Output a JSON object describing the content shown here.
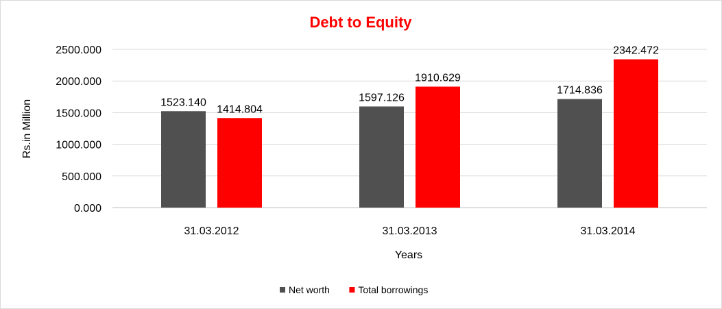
{
  "chart_data": {
    "type": "bar",
    "title": "Debt to Equity",
    "title_color": "#ff0000",
    "xlabel": "Years",
    "ylabel": "Rs.in Million",
    "categories": [
      "31.03.2012",
      "31.03.2013",
      "31.03.2014"
    ],
    "y_ticks": [
      "0.000",
      "500.000",
      "1000.000",
      "1500.000",
      "2000.000",
      "2500.000"
    ],
    "ylim": [
      0,
      2500
    ],
    "grid": true,
    "legend_position": "bottom",
    "series": [
      {
        "name": "Net worth",
        "color": "#505050",
        "values": [
          1523.14,
          1597.126,
          1714.836
        ],
        "labels": [
          "1523.140",
          "1597.126",
          "1714.836"
        ]
      },
      {
        "name": "Total borrowings",
        "color": "#ff0000",
        "values": [
          1414.804,
          1910.629,
          2342.472
        ],
        "labels": [
          "1414.804",
          "1910.629",
          "2342.472"
        ]
      }
    ]
  }
}
